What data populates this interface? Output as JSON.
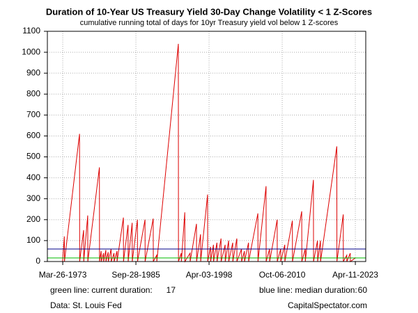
{
  "chart_data": {
    "type": "line",
    "title": "Duration of 10-Year US Treasury Yield 30-Day Change Volatility < 1 Z-Scores",
    "subtitle": "cumulative running total of days for 10yr Treasury yield vol below 1 Z-scores",
    "x": [
      1973.2,
      1973.5,
      1973.52,
      1976.1,
      1976.12,
      1976.8,
      1976.82,
      1977.5,
      1977.52,
      1979.5,
      1979.52,
      1979.8,
      1979.82,
      1980.2,
      1980.22,
      1980.6,
      1980.62,
      1981.0,
      1981.02,
      1981.5,
      1981.52,
      1982.0,
      1982.02,
      1982.5,
      1982.52,
      1983.6,
      1983.62,
      1984.4,
      1984.42,
      1985.1,
      1985.12,
      1986.0,
      1986.02,
      1987.3,
      1987.32,
      1988.7,
      1988.72,
      1989.3,
      1989.32,
      1993.0,
      1993.02,
      1993.5,
      1993.52,
      1994.1,
      1994.12,
      1995.0,
      1995.02,
      1996.1,
      1996.12,
      1996.8,
      1996.82,
      1998.0,
      1998.02,
      1998.5,
      1998.52,
      1999.0,
      1999.02,
      1999.6,
      1999.62,
      2000.3,
      2000.32,
      2001.0,
      2001.02,
      2001.6,
      2001.62,
      2002.3,
      2002.32,
      2003.0,
      2003.02,
      2003.8,
      2003.82,
      2004.3,
      2004.32,
      2005.0,
      2005.02,
      2006.6,
      2006.62,
      2008.0,
      2008.02,
      2008.6,
      2008.62,
      2009.9,
      2009.92,
      2010.5,
      2010.52,
      2011.2,
      2011.22,
      2012.5,
      2012.52,
      2014.1,
      2014.12,
      2014.7,
      2014.72,
      2016.1,
      2016.12,
      2016.8,
      2016.82,
      2017.3,
      2017.32,
      2020.1,
      2020.12,
      2021.2,
      2021.22,
      2021.8,
      2021.82,
      2022.4,
      2022.42,
      2023.27
    ],
    "series": [
      {
        "color": "#dd0000",
        "values": [
          0,
          120,
          0,
          610,
          0,
          150,
          0,
          220,
          0,
          450,
          0,
          50,
          0,
          40,
          0,
          55,
          0,
          45,
          0,
          60,
          0,
          40,
          0,
          50,
          0,
          210,
          0,
          175,
          0,
          185,
          0,
          200,
          0,
          200,
          0,
          205,
          0,
          30,
          0,
          1040,
          0,
          40,
          0,
          235,
          0,
          40,
          0,
          180,
          0,
          130,
          0,
          320,
          0,
          70,
          0,
          80,
          0,
          90,
          0,
          110,
          0,
          80,
          0,
          100,
          0,
          90,
          0,
          110,
          0,
          60,
          0,
          50,
          0,
          90,
          0,
          230,
          0,
          360,
          0,
          60,
          0,
          200,
          0,
          60,
          0,
          80,
          0,
          195,
          0,
          240,
          0,
          60,
          0,
          390,
          0,
          100,
          0,
          100,
          0,
          550,
          0,
          225,
          0,
          30,
          0,
          40,
          0,
          17
        ]
      }
    ],
    "xlim": [
      1970.6,
      2025.05
    ],
    "xticks": [
      {
        "value": 1973.23,
        "label": "Mar-26-1973"
      },
      {
        "value": 1985.74,
        "label": "Sep-28-1985"
      },
      {
        "value": 1998.25,
        "label": "Apr-03-1998"
      },
      {
        "value": 2010.76,
        "label": "Oct-06-2010"
      },
      {
        "value": 2023.27,
        "label": "Apr-11-2023"
      }
    ],
    "ylim": [
      0,
      1100
    ],
    "yticks": [
      0,
      100,
      200,
      300,
      400,
      500,
      600,
      700,
      800,
      900,
      1000,
      1100
    ],
    "grid": true,
    "reference_lines": [
      {
        "label": "green line: current duration:",
        "value": 17,
        "color": "#00bb00"
      },
      {
        "label": "blue line: median duration:",
        "value": 60,
        "color": "#000088"
      }
    ],
    "source": "Data: St. Louis Fed",
    "credit": "CapitalSpectator.com"
  }
}
